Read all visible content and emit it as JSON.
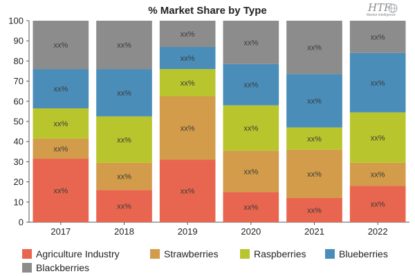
{
  "chart_data": {
    "type": "bar",
    "stacked": true,
    "title": "% Market Share by Type",
    "xlabel": "",
    "ylabel": "",
    "ylim": [
      0,
      100
    ],
    "yticks": [
      0,
      10,
      20,
      30,
      40,
      50,
      60,
      70,
      80,
      90,
      100
    ],
    "grid": false,
    "legend_position": "bottom",
    "categories": [
      "2017",
      "2018",
      "2019",
      "2020",
      "2021",
      "2022"
    ],
    "data_label": "xx%",
    "series": [
      {
        "name": "Agriculture Industry",
        "color": "#e8664f",
        "values": [
          31.5,
          16,
          31,
          15,
          12,
          18
        ]
      },
      {
        "name": "Strawberries",
        "color": "#d29c4a",
        "values": [
          10,
          13.5,
          31.5,
          20.5,
          24,
          11.5
        ]
      },
      {
        "name": "Raspberries",
        "color": "#b9c52d",
        "values": [
          15,
          23,
          13.5,
          22.5,
          11,
          25
        ]
      },
      {
        "name": "Blueberries",
        "color": "#4a8db8",
        "values": [
          19.5,
          23.5,
          11,
          20.5,
          26.5,
          29.5
        ]
      },
      {
        "name": "Blackberries",
        "color": "#8c8c8c",
        "values": [
          24,
          24,
          13,
          21.5,
          26.5,
          16
        ]
      }
    ]
  },
  "logo": {
    "big": "HTF",
    "small": "Market Intelligence"
  }
}
